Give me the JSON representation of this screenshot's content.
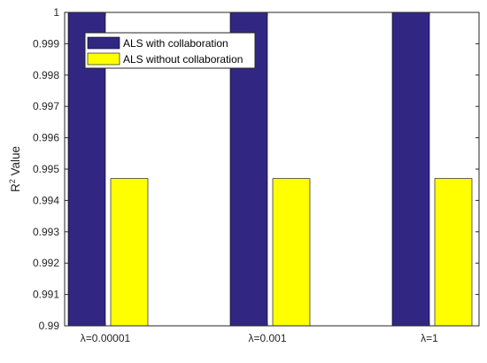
{
  "chart_data": {
    "type": "bar",
    "title": "",
    "xlabel": "",
    "ylabel": "R² Value",
    "categories": [
      "λ=0.00001",
      "λ=0.001",
      "λ=1"
    ],
    "series": [
      {
        "name": "ALS with collaboration",
        "values": [
          1.0,
          1.0,
          1.0
        ]
      },
      {
        "name": "ALS without collaboration",
        "values": [
          0.9947,
          0.9947,
          0.9947
        ]
      }
    ],
    "ylim": [
      0.99,
      1.0
    ],
    "yticks": [
      "0.99",
      "0.991",
      "0.992",
      "0.993",
      "0.994",
      "0.995",
      "0.996",
      "0.997",
      "0.998",
      "0.999",
      "1"
    ],
    "grid": false,
    "legend_position": "top-left"
  },
  "colors": {
    "series": [
      "#312783",
      "#ffff00"
    ],
    "axis": "#262626"
  }
}
